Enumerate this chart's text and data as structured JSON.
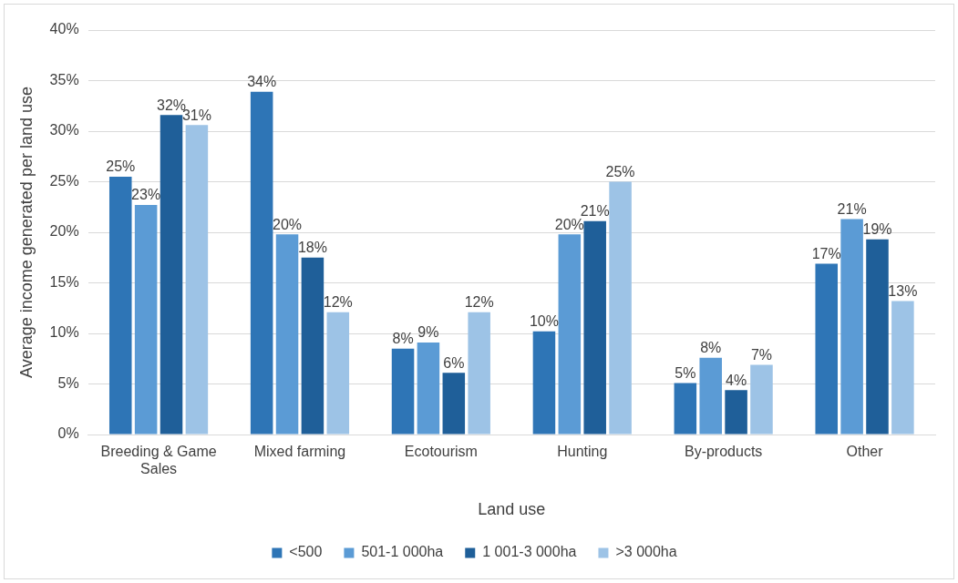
{
  "chart_data": {
    "type": "bar",
    "xlabel": "Land use",
    "ylabel": "Average income generated per land use",
    "categories": [
      "Breeding & Game Sales",
      "Mixed farming",
      "Ecotourism",
      "Hunting",
      "By-products",
      "Other"
    ],
    "series": [
      {
        "name": "<500",
        "color": "#2e75b6",
        "values": [
          25.5,
          33.9,
          8.5,
          10.2,
          5.1,
          16.9
        ],
        "value_labels": [
          "25%",
          "34%",
          "8%",
          "10%",
          "5%",
          "17%"
        ]
      },
      {
        "name": "501-1 000ha",
        "color": "#5b9bd5",
        "values": [
          22.7,
          19.8,
          9.1,
          19.8,
          7.6,
          21.3
        ],
        "value_labels": [
          "23%",
          "20%",
          "9%",
          "20%",
          "8%",
          "21%"
        ]
      },
      {
        "name": "1 001-3 000ha",
        "color": "#1f5f99",
        "values": [
          31.6,
          17.5,
          6.1,
          21.1,
          4.4,
          19.3
        ],
        "value_labels": [
          "32%",
          "18%",
          "6%",
          "21%",
          "4%",
          "19%"
        ]
      },
      {
        "name": ">3 000ha",
        "color": "#9dc3e6",
        "values": [
          30.6,
          12.1,
          12.1,
          25.0,
          6.9,
          13.2
        ],
        "value_labels": [
          "31%",
          "12%",
          "12%",
          "25%",
          "7%",
          "13%"
        ]
      }
    ],
    "ylim": [
      0,
      40
    ],
    "yticks": [
      {
        "value": 0,
        "label": "0%"
      },
      {
        "value": 5,
        "label": "5%"
      },
      {
        "value": 10,
        "label": "10%"
      },
      {
        "value": 15,
        "label": "15%"
      },
      {
        "value": 20,
        "label": "20%"
      },
      {
        "value": 25,
        "label": "25%"
      },
      {
        "value": 30,
        "label": "30%"
      },
      {
        "value": 35,
        "label": "35%"
      },
      {
        "value": 40,
        "label": "40%"
      }
    ],
    "grid": "y",
    "legend": "bottom"
  }
}
